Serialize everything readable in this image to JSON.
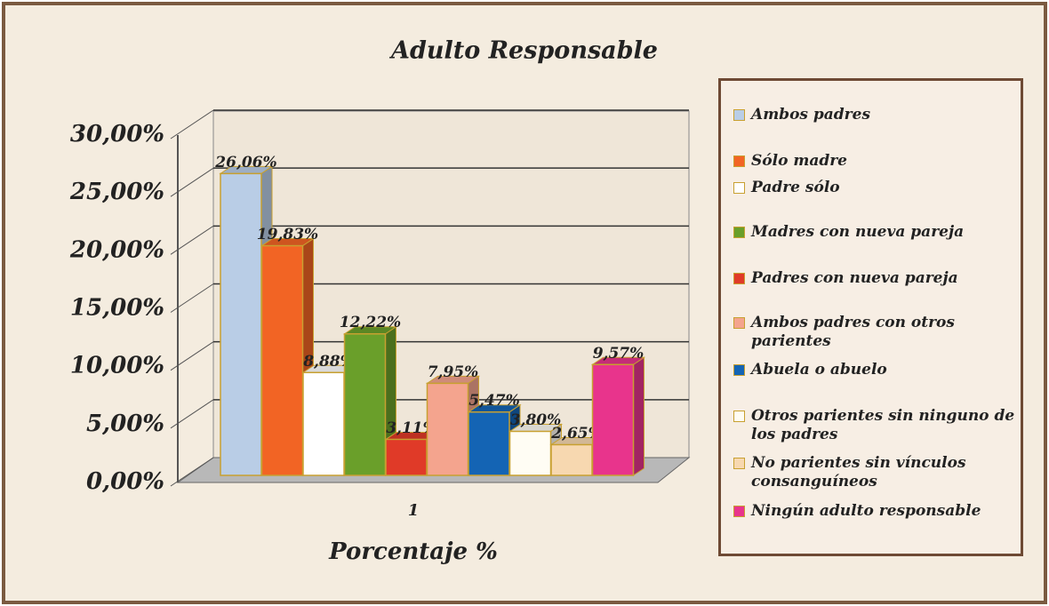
{
  "chart_data": {
    "type": "bar3d",
    "title": "Adulto Responsable",
    "x_label": "Porcentaje %",
    "categories": [
      "1"
    ],
    "series": [
      {
        "name": "Ambos padres",
        "color": "#b9cde6",
        "values": [
          26.06
        ],
        "value_labels": [
          "26,06%"
        ]
      },
      {
        "name": "Sólo madre",
        "color": "#f26424",
        "values": [
          19.83
        ],
        "value_labels": [
          "19,83%"
        ]
      },
      {
        "name": "Padre sólo",
        "color": "#ffffff",
        "values": [
          8.88
        ],
        "value_labels": [
          "8,88%"
        ]
      },
      {
        "name": "Madres con nueva pareja",
        "color": "#6a9f2a",
        "values": [
          12.22
        ],
        "value_labels": [
          "12,22%"
        ]
      },
      {
        "name": "Padres con nueva pareja",
        "color": "#e03a28",
        "values": [
          3.11
        ],
        "value_labels": [
          "3,11%"
        ]
      },
      {
        "name": "Ambos padres con otros parientes",
        "color": "#f4a48e",
        "values": [
          7.95
        ],
        "value_labels": [
          "7,95%"
        ]
      },
      {
        "name": "Abuela o abuelo",
        "color": "#1464b4",
        "values": [
          5.47
        ],
        "value_labels": [
          "5,47%"
        ]
      },
      {
        "name": "Otros parientes sin ninguno de los padres",
        "color": "#fffdf4",
        "values": [
          3.8
        ],
        "value_labels": [
          "3,80%"
        ]
      },
      {
        "name": "No parientes sin vínculos consanguíneos",
        "color": "#f7d8b0",
        "values": [
          2.65
        ],
        "value_labels": [
          "2,65%"
        ]
      },
      {
        "name": "Ningún adulto responsable",
        "color": "#e8348c",
        "values": [
          9.57
        ],
        "value_labels": [
          "9,57%"
        ]
      }
    ],
    "ylim": [
      0,
      30
    ],
    "yticks": [
      {
        "value": 0,
        "label": "0,00%"
      },
      {
        "value": 5,
        "label": "5,00%"
      },
      {
        "value": 10,
        "label": "10,00%"
      },
      {
        "value": 15,
        "label": "15,00%"
      },
      {
        "value": 20,
        "label": "20,00%"
      },
      {
        "value": 25,
        "label": "25,00%"
      },
      {
        "value": 30,
        "label": "30,00%"
      }
    ],
    "grid": true,
    "legend": "right"
  }
}
